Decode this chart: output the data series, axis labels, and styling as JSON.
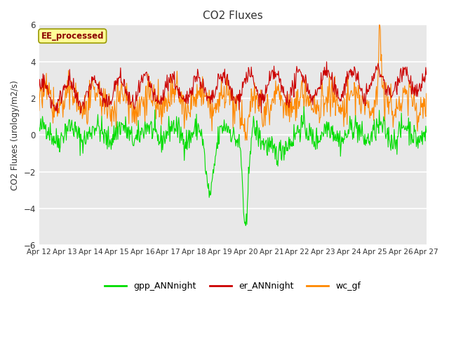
{
  "title": "CO2 Fluxes",
  "ylabel": "CO2 Fluxes (urology/m2/s)",
  "ylim": [
    -6,
    6
  ],
  "yticks": [
    -6,
    -4,
    -2,
    0,
    2,
    4,
    6
  ],
  "xticklabels": [
    "Apr 12",
    "Apr 13",
    "Apr 14",
    "Apr 15",
    "Apr 16",
    "Apr 17",
    "Apr 18",
    "Apr 19",
    "Apr 20",
    "Apr 21",
    "Apr 22",
    "Apr 23",
    "Apr 24",
    "Apr 25",
    "Apr 26",
    "Apr 27"
  ],
  "series": {
    "gpp_ANNnight": {
      "color": "#00dd00",
      "lw": 0.8
    },
    "er_ANNnight": {
      "color": "#cc0000",
      "lw": 0.8
    },
    "wc_gf": {
      "color": "#ff8800",
      "lw": 0.8
    }
  },
  "annotation": {
    "text": "EE_processed",
    "text_color": "#8b0000",
    "bg_color": "#ffff99",
    "edge_color": "#999900"
  },
  "plot_bg_color": "#e8e8e8",
  "fig_bg_color": "#ffffff",
  "grid_color": "#ffffff",
  "tick_color": "#333333",
  "title_color": "#333333",
  "seed": 42,
  "n_points": 700
}
